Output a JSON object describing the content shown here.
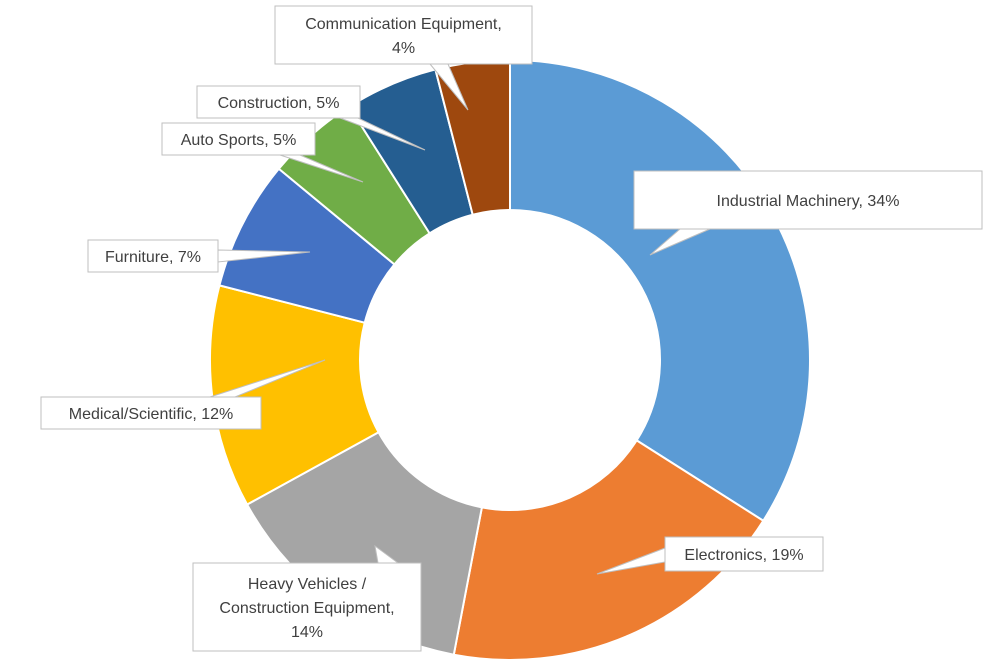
{
  "chart_data": {
    "type": "pie",
    "title": "",
    "legend": "none",
    "colors": {
      "Industrial Machinery": "#5B9BD5",
      "Electronics": "#ED7D31",
      "Heavy Vehicles / Construction Equipment": "#A5A5A5",
      "Medical/Scientific": "#FFC000",
      "Furniture": "#4472C4",
      "Auto Sports": "#70AD47",
      "Construction": "#255E91",
      "Communication Equipment": "#9E480E"
    },
    "slices": [
      {
        "label": "Industrial Machinery",
        "value": 34,
        "text": [
          "Industrial Machinery, 34%"
        ]
      },
      {
        "label": "Electronics",
        "value": 19,
        "text": [
          "Electronics, 19%"
        ]
      },
      {
        "label": "Heavy Vehicles / Construction Equipment",
        "value": 14,
        "text": [
          "Heavy Vehicles /",
          "Construction Equipment,",
          "14%"
        ]
      },
      {
        "label": "Medical/Scientific",
        "value": 12,
        "text": [
          "Medical/Scientific, 12%"
        ]
      },
      {
        "label": "Furniture",
        "value": 7,
        "text": [
          "Furniture, 7%"
        ]
      },
      {
        "label": "Auto Sports",
        "value": 5,
        "text": [
          "Auto Sports, 5%"
        ]
      },
      {
        "label": "Construction",
        "value": 5,
        "text": [
          "Construction, 5%"
        ]
      },
      {
        "label": "Communication Equipment",
        "value": 4,
        "text": [
          "Communication Equipment,",
          "4%"
        ]
      }
    ]
  }
}
